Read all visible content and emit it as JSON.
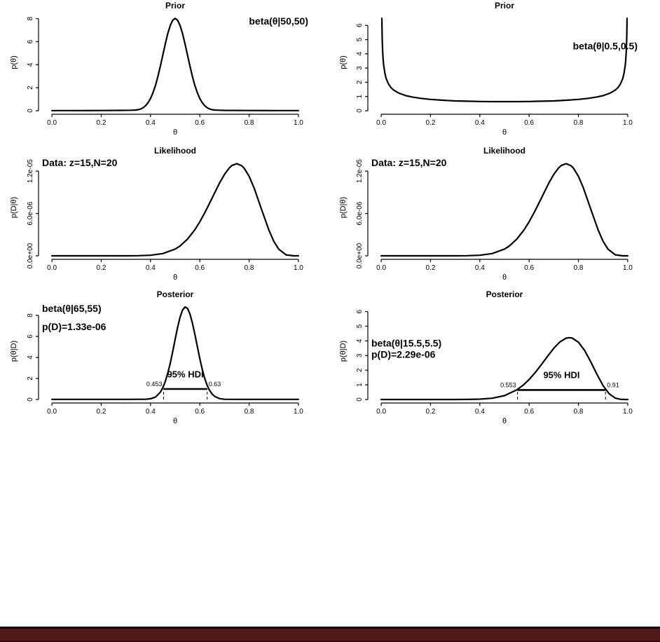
{
  "footer": {
    "bar_color": "#511a1a",
    "edge_color": "#120404"
  },
  "chart_data": [
    {
      "id": "prior-left",
      "type": "line",
      "title": "Prior",
      "xlabel": "θ",
      "ylabel": "p(θ)",
      "xlim": [
        0,
        1
      ],
      "ylim": [
        0,
        8.4
      ],
      "grid": false,
      "xticks": [
        "0.0",
        "0.2",
        "0.4",
        "0.6",
        "0.8",
        "1.0"
      ],
      "xtick_vals": [
        0,
        0.2,
        0.4,
        0.6,
        0.8,
        1.0
      ],
      "yticks": [
        "0",
        "2",
        "4",
        "6",
        "8"
      ],
      "ytick_vals": [
        0,
        2,
        4,
        6,
        8
      ],
      "annotations": [
        {
          "text": "beta(θ|50,50)",
          "x": 1.04,
          "y": 7.5,
          "anchor": "end"
        }
      ],
      "points": [
        [
          0,
          0.01
        ],
        [
          0.1,
          0.01
        ],
        [
          0.2,
          0.02
        ],
        [
          0.28,
          0.03
        ],
        [
          0.32,
          0.04
        ],
        [
          0.34,
          0.06
        ],
        [
          0.35,
          0.09
        ],
        [
          0.36,
          0.15
        ],
        [
          0.37,
          0.26
        ],
        [
          0.38,
          0.44
        ],
        [
          0.39,
          0.7
        ],
        [
          0.4,
          1.06
        ],
        [
          0.41,
          1.56
        ],
        [
          0.42,
          2.2
        ],
        [
          0.43,
          2.98
        ],
        [
          0.44,
          3.88
        ],
        [
          0.45,
          4.84
        ],
        [
          0.46,
          5.8
        ],
        [
          0.47,
          6.69
        ],
        [
          0.48,
          7.4
        ],
        [
          0.49,
          7.86
        ],
        [
          0.5,
          8.02
        ],
        [
          0.51,
          7.86
        ],
        [
          0.52,
          7.4
        ],
        [
          0.53,
          6.69
        ],
        [
          0.54,
          5.8
        ],
        [
          0.55,
          4.84
        ],
        [
          0.56,
          3.88
        ],
        [
          0.57,
          2.98
        ],
        [
          0.58,
          2.2
        ],
        [
          0.59,
          1.56
        ],
        [
          0.6,
          1.06
        ],
        [
          0.61,
          0.7
        ],
        [
          0.62,
          0.44
        ],
        [
          0.63,
          0.26
        ],
        [
          0.64,
          0.15
        ],
        [
          0.65,
          0.09
        ],
        [
          0.66,
          0.06
        ],
        [
          0.68,
          0.04
        ],
        [
          0.7,
          0.03
        ],
        [
          0.8,
          0.02
        ],
        [
          0.9,
          0.01
        ],
        [
          1,
          0.01
        ]
      ]
    },
    {
      "id": "prior-right",
      "type": "line",
      "title": "Prior",
      "xlabel": "θ",
      "ylabel": "p(θ)",
      "xlim": [
        0,
        1
      ],
      "ylim": [
        0,
        6.8
      ],
      "grid": false,
      "xticks": [
        "0.0",
        "0.2",
        "0.4",
        "0.6",
        "0.8",
        "1.0"
      ],
      "xtick_vals": [
        0,
        0.2,
        0.4,
        0.6,
        0.8,
        1.0
      ],
      "yticks": [
        "0",
        "1",
        "2",
        "3",
        "4",
        "5",
        "6"
      ],
      "ytick_vals": [
        0,
        1,
        2,
        3,
        4,
        5,
        6
      ],
      "annotations": [
        {
          "text": "beta(θ|0.5,0.5)",
          "x": 1.04,
          "y": 4.3,
          "anchor": "end"
        }
      ],
      "points": [
        [
          0.0026,
          6.5
        ],
        [
          0.004,
          5.04
        ],
        [
          0.006,
          4.12
        ],
        [
          0.008,
          3.57
        ],
        [
          0.01,
          3.2
        ],
        [
          0.015,
          2.62
        ],
        [
          0.02,
          2.27
        ],
        [
          0.03,
          1.87
        ],
        [
          0.04,
          1.62
        ],
        [
          0.05,
          1.46
        ],
        [
          0.07,
          1.25
        ],
        [
          0.1,
          1.06
        ],
        [
          0.13,
          0.95
        ],
        [
          0.16,
          0.87
        ],
        [
          0.2,
          0.8
        ],
        [
          0.25,
          0.74
        ],
        [
          0.3,
          0.69
        ],
        [
          0.35,
          0.67
        ],
        [
          0.4,
          0.65
        ],
        [
          0.45,
          0.64
        ],
        [
          0.5,
          0.64
        ],
        [
          0.55,
          0.64
        ],
        [
          0.6,
          0.65
        ],
        [
          0.65,
          0.67
        ],
        [
          0.7,
          0.69
        ],
        [
          0.75,
          0.74
        ],
        [
          0.8,
          0.8
        ],
        [
          0.84,
          0.87
        ],
        [
          0.87,
          0.95
        ],
        [
          0.9,
          1.06
        ],
        [
          0.93,
          1.25
        ],
        [
          0.95,
          1.46
        ],
        [
          0.96,
          1.62
        ],
        [
          0.97,
          1.87
        ],
        [
          0.98,
          2.27
        ],
        [
          0.985,
          2.62
        ],
        [
          0.99,
          3.2
        ],
        [
          0.992,
          3.57
        ],
        [
          0.994,
          4.12
        ],
        [
          0.996,
          5.04
        ],
        [
          0.9974,
          6.5
        ]
      ]
    },
    {
      "id": "likelihood-left",
      "type": "line",
      "title": "Likelihood",
      "xlabel": "θ",
      "ylabel": "p(D|θ)",
      "xlim": [
        0,
        1
      ],
      "ylim": [
        0,
        1.37e-05
      ],
      "grid": false,
      "xticks": [
        "0.0",
        "0.2",
        "0.4",
        "0.6",
        "0.8",
        "1.0"
      ],
      "xtick_vals": [
        0,
        0.2,
        0.4,
        0.6,
        0.8,
        1.0
      ],
      "yticks": [
        "0.0e+00",
        "6.0e-06",
        "1.2e-05"
      ],
      "ytick_vals": [
        0,
        6e-06,
        1.2e-05
      ],
      "annotations": [
        {
          "text": "Data: z=15,N=20",
          "x": -0.04,
          "y": 1.27e-05,
          "anchor": "start"
        }
      ],
      "points": [
        [
          0,
          0
        ],
        [
          0.05,
          0
        ],
        [
          0.1,
          0
        ],
        [
          0.15,
          0
        ],
        [
          0.2,
          0
        ],
        [
          0.25,
          0
        ],
        [
          0.3,
          2.4e-09
        ],
        [
          0.35,
          1.7e-08
        ],
        [
          0.4,
          8.4e-08
        ],
        [
          0.45,
          3.2e-07
        ],
        [
          0.5,
          9.5e-07
        ],
        [
          0.52,
          1.4e-06
        ],
        [
          0.55,
          2.36e-06
        ],
        [
          0.58,
          3.69e-06
        ],
        [
          0.6,
          4.82e-06
        ],
        [
          0.62,
          6.1e-06
        ],
        [
          0.63,
          6.78e-06
        ],
        [
          0.65,
          8.19e-06
        ],
        [
          0.68,
          1.03e-05
        ],
        [
          0.7,
          1.154e-05
        ],
        [
          0.72,
          1.247e-05
        ],
        [
          0.73,
          1.279e-05
        ],
        [
          0.75,
          1.305e-05
        ],
        [
          0.77,
          1.276e-05
        ],
        [
          0.78,
          1.241e-05
        ],
        [
          0.8,
          1.126e-05
        ],
        [
          0.82,
          9.63e-06
        ],
        [
          0.85,
          6.63e-06
        ],
        [
          0.88,
          3.66e-06
        ],
        [
          0.9,
          2.06e-06
        ],
        [
          0.92,
          9.4e-07
        ],
        [
          0.95,
          1.4e-07
        ],
        [
          0.98,
          2e-09
        ],
        [
          1,
          0
        ]
      ]
    },
    {
      "id": "likelihood-right",
      "type": "line",
      "title": "Likelihood",
      "xlabel": "θ",
      "ylabel": "p(D|θ)",
      "xlim": [
        0,
        1
      ],
      "ylim": [
        0,
        1.37e-05
      ],
      "grid": false,
      "xticks": [
        "0.0",
        "0.2",
        "0.4",
        "0.6",
        "0.8",
        "1.0"
      ],
      "xtick_vals": [
        0,
        0.2,
        0.4,
        0.6,
        0.8,
        1.0
      ],
      "yticks": [
        "0.0e+00",
        "6.0e-06",
        "1.2e-05"
      ],
      "ytick_vals": [
        0,
        6e-06,
        1.2e-05
      ],
      "annotations": [
        {
          "text": "Data: z=15,N=20",
          "x": -0.04,
          "y": 1.27e-05,
          "anchor": "start"
        }
      ],
      "points": [
        [
          0,
          0
        ],
        [
          0.05,
          0
        ],
        [
          0.1,
          0
        ],
        [
          0.15,
          0
        ],
        [
          0.2,
          0
        ],
        [
          0.25,
          0
        ],
        [
          0.3,
          2.4e-09
        ],
        [
          0.35,
          1.7e-08
        ],
        [
          0.4,
          8.4e-08
        ],
        [
          0.45,
          3.2e-07
        ],
        [
          0.5,
          9.5e-07
        ],
        [
          0.52,
          1.4e-06
        ],
        [
          0.55,
          2.36e-06
        ],
        [
          0.58,
          3.69e-06
        ],
        [
          0.6,
          4.82e-06
        ],
        [
          0.62,
          6.1e-06
        ],
        [
          0.63,
          6.78e-06
        ],
        [
          0.65,
          8.19e-06
        ],
        [
          0.68,
          1.03e-05
        ],
        [
          0.7,
          1.154e-05
        ],
        [
          0.72,
          1.247e-05
        ],
        [
          0.73,
          1.279e-05
        ],
        [
          0.75,
          1.305e-05
        ],
        [
          0.77,
          1.276e-05
        ],
        [
          0.78,
          1.241e-05
        ],
        [
          0.8,
          1.126e-05
        ],
        [
          0.82,
          9.63e-06
        ],
        [
          0.85,
          6.63e-06
        ],
        [
          0.88,
          3.66e-06
        ],
        [
          0.9,
          2.06e-06
        ],
        [
          0.92,
          9.4e-07
        ],
        [
          0.95,
          1.4e-07
        ],
        [
          0.98,
          2e-09
        ],
        [
          1,
          0
        ]
      ]
    },
    {
      "id": "posterior-left",
      "type": "line",
      "title": "Posterior",
      "xlabel": "θ",
      "ylabel": "p(θ|D)",
      "xlim": [
        0,
        1
      ],
      "ylim": [
        0,
        9.2
      ],
      "grid": false,
      "xticks": [
        "0.0",
        "0.2",
        "0.4",
        "0.6",
        "0.8",
        "1.0"
      ],
      "xtick_vals": [
        0,
        0.2,
        0.4,
        0.6,
        0.8,
        1.0
      ],
      "yticks": [
        "0",
        "2",
        "4",
        "6",
        "8"
      ],
      "ytick_vals": [
        0,
        2,
        4,
        6,
        8
      ],
      "annotations": [
        {
          "text": "beta(θ|65,55)",
          "x": -0.04,
          "y": 8.35,
          "anchor": "start"
        },
        {
          "text": "p(D)=1.33e-06",
          "x": -0.04,
          "y": 6.6,
          "anchor": "start"
        }
      ],
      "hdi": {
        "x1": 0.453,
        "x2": 0.63,
        "y": 1.0,
        "x1_label": "0.453",
        "x2_label": "0.63",
        "label": "95% HDI",
        "label_y": 2.1
      },
      "points": [
        [
          0,
          0.01
        ],
        [
          0.1,
          0.01
        ],
        [
          0.2,
          0.01
        ],
        [
          0.3,
          0.01
        ],
        [
          0.36,
          0.02
        ],
        [
          0.38,
          0.02
        ],
        [
          0.4,
          0.07
        ],
        [
          0.42,
          0.23
        ],
        [
          0.44,
          0.7
        ],
        [
          0.45,
          1.12
        ],
        [
          0.46,
          1.71
        ],
        [
          0.47,
          2.49
        ],
        [
          0.48,
          3.45
        ],
        [
          0.49,
          4.56
        ],
        [
          0.5,
          5.73
        ],
        [
          0.51,
          6.86
        ],
        [
          0.52,
          7.83
        ],
        [
          0.53,
          8.51
        ],
        [
          0.54,
          8.8
        ],
        [
          0.55,
          8.67
        ],
        [
          0.56,
          8.14
        ],
        [
          0.57,
          7.28
        ],
        [
          0.58,
          6.2
        ],
        [
          0.59,
          5.03
        ],
        [
          0.6,
          3.88
        ],
        [
          0.61,
          2.86
        ],
        [
          0.62,
          2
        ],
        [
          0.63,
          1.34
        ],
        [
          0.64,
          0.85
        ],
        [
          0.65,
          0.51
        ],
        [
          0.66,
          0.3
        ],
        [
          0.68,
          0.09
        ],
        [
          0.7,
          0.02
        ],
        [
          0.75,
          0.01
        ],
        [
          0.8,
          0.01
        ],
        [
          0.9,
          0.01
        ],
        [
          1,
          0.01
        ]
      ]
    },
    {
      "id": "posterior-right",
      "type": "line",
      "title": "Posterior",
      "xlabel": "θ",
      "ylabel": "p(θ|D)",
      "xlim": [
        0,
        1
      ],
      "ylim": [
        0,
        6.6
      ],
      "grid": false,
      "xticks": [
        "0.0",
        "0.2",
        "0.4",
        "0.6",
        "0.8",
        "1.0"
      ],
      "xtick_vals": [
        0,
        0.2,
        0.4,
        0.6,
        0.8,
        1.0
      ],
      "yticks": [
        "0",
        "1",
        "2",
        "3",
        "4",
        "5",
        "6"
      ],
      "ytick_vals": [
        0,
        1,
        2,
        3,
        4,
        5,
        6
      ],
      "annotations": [
        {
          "text": "beta(θ|15.5,5.5)",
          "x": -0.04,
          "y": 3.6,
          "anchor": "start"
        },
        {
          "text": "p(D)=2.29e-06",
          "x": -0.04,
          "y": 2.85,
          "anchor": "start"
        }
      ],
      "hdi": {
        "x1": 0.553,
        "x2": 0.91,
        "y": 0.65,
        "x1_label": "0.553",
        "x2_label": "0.91",
        "label": "95% HDI",
        "label_y": 1.45
      },
      "points": [
        [
          0,
          0
        ],
        [
          0.1,
          0
        ],
        [
          0.2,
          0
        ],
        [
          0.3,
          0.001
        ],
        [
          0.35,
          0.005
        ],
        [
          0.4,
          0.024
        ],
        [
          0.45,
          0.088
        ],
        [
          0.5,
          0.265
        ],
        [
          0.55,
          0.656
        ],
        [
          0.575,
          0.967
        ],
        [
          0.6,
          1.364
        ],
        [
          0.625,
          1.845
        ],
        [
          0.65,
          2.388
        ],
        [
          0.675,
          2.957
        ],
        [
          0.7,
          3.495
        ],
        [
          0.725,
          3.93
        ],
        [
          0.75,
          4.184
        ],
        [
          0.763,
          4.218
        ],
        [
          0.775,
          4.19
        ],
        [
          0.8,
          3.907
        ],
        [
          0.825,
          3.347
        ],
        [
          0.85,
          2.579
        ],
        [
          0.875,
          1.728
        ],
        [
          0.9,
          0.953
        ],
        [
          0.925,
          0.388
        ],
        [
          0.95,
          0.092
        ],
        [
          0.97,
          0.013
        ],
        [
          0.99,
          0.001
        ],
        [
          1,
          0
        ]
      ]
    }
  ]
}
